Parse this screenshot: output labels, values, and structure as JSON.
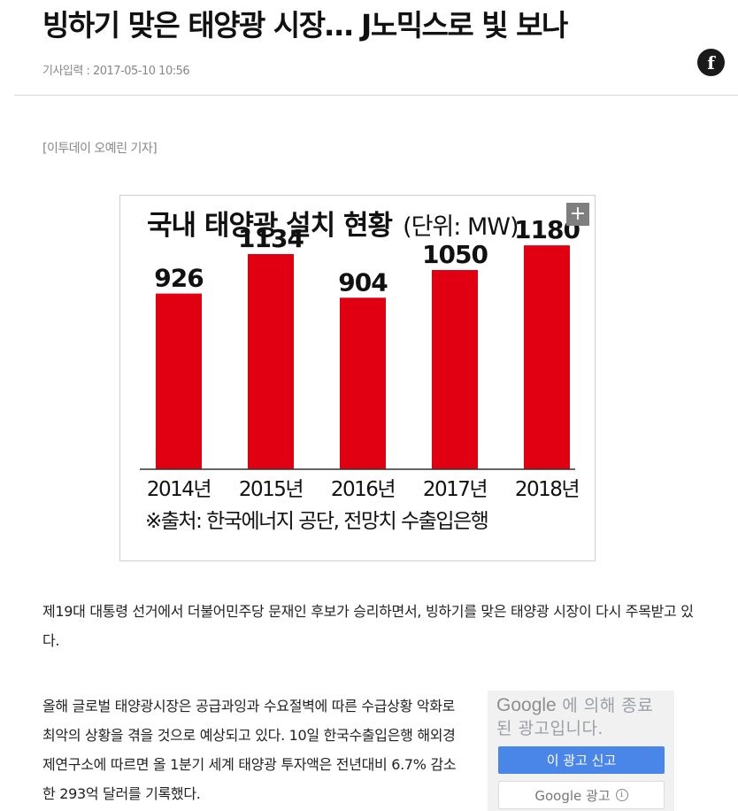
{
  "article": {
    "headline": "빙하기 맞은 태양광 시장… J노믹스로 빛 보나",
    "meta": "기사입력 : 2017-05-10 10:56",
    "share_icon": "facebook-icon",
    "share_glyph": "f",
    "byline": "[이투데이 오예린 기자]",
    "paragraph1": "제19대 대통령 선거에서 더불어민주당 문재인 후보가 승리하면서, 빙하기를 맞은 태양광 시장이 다시 주목받고 있다.",
    "paragraph2": "올해 글로벌 태양광시장은 공급과잉과 수요절벽에 따른 수급상황 악화로 최악의 상황을 겪을 것으로 예상되고 있다. 10일 한국수출입은행 해외경제연구소에 따르면 올 1분기 세계 태양광 투자액은 전년대비 6.7% 감소한 293억 달러를 기록했다."
  },
  "figure": {
    "expand_glyph": "+",
    "expand_icon": "plus-icon"
  },
  "chart_data": {
    "type": "bar",
    "title": "국내 태양광 설치 현황",
    "unit": "(단위: MW)",
    "categories": [
      "2014년",
      "2015년",
      "2016년",
      "2017년",
      "2018년"
    ],
    "values": [
      926,
      1134,
      904,
      1050,
      1180
    ],
    "data_labels": [
      "926",
      "1134",
      "904",
      "1050",
      "1180"
    ],
    "source": "※출처: 한국에너지 공단, 전망치 수출입은행",
    "bar_color": "#e00012",
    "ylim": [
      0,
      1400
    ],
    "grid": false,
    "legend": "none"
  },
  "ad": {
    "google_word": "Google",
    "closed_text": "에 의해 종료된 광고입니다.",
    "report_button": "이 광고 신고",
    "google_ads_button": "Google 광고",
    "info_glyph": "i"
  },
  "colors": {
    "report_blue": "#4a86e8",
    "ad_bg": "#f1f1f1"
  }
}
